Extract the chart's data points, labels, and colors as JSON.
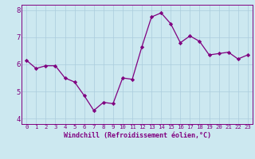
{
  "x": [
    0,
    1,
    2,
    3,
    4,
    5,
    6,
    7,
    8,
    9,
    10,
    11,
    12,
    13,
    14,
    15,
    16,
    17,
    18,
    19,
    20,
    21,
    22,
    23
  ],
  "y": [
    6.15,
    5.85,
    5.95,
    5.95,
    5.5,
    5.35,
    4.85,
    4.3,
    4.6,
    4.55,
    5.5,
    5.45,
    6.65,
    7.75,
    7.9,
    7.5,
    6.8,
    7.05,
    6.85,
    6.35,
    6.4,
    6.45,
    6.2,
    6.35
  ],
  "xlabel": "Windchill (Refroidissement éolien,°C)",
  "xlim": [
    -0.5,
    23.5
  ],
  "ylim": [
    3.8,
    8.2
  ],
  "yticks": [
    4,
    5,
    6,
    7,
    8
  ],
  "xticks": [
    0,
    1,
    2,
    3,
    4,
    5,
    6,
    7,
    8,
    9,
    10,
    11,
    12,
    13,
    14,
    15,
    16,
    17,
    18,
    19,
    20,
    21,
    22,
    23
  ],
  "line_color": "#800080",
  "marker_color": "#800080",
  "bg_color": "#cce8f0",
  "grid_color": "#aaccdd",
  "axis_color": "#800080",
  "tick_color": "#800080",
  "label_color": "#800080",
  "xlabel_fontsize": 6.0,
  "xtick_fontsize": 5.2,
  "ytick_fontsize": 6.5
}
